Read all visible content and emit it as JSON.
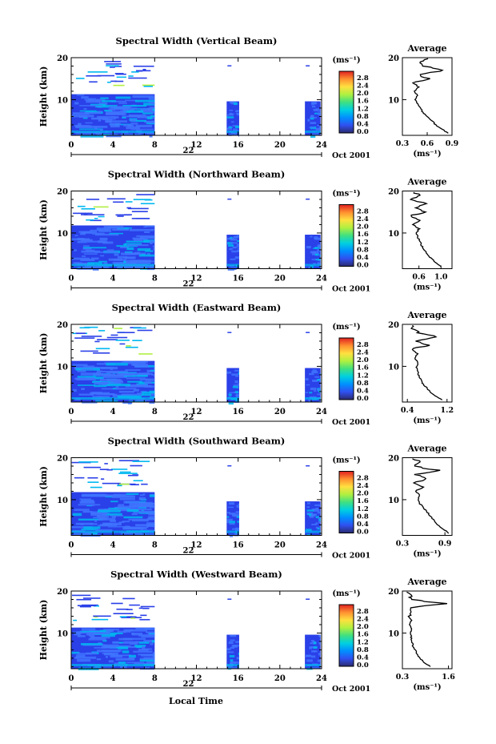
{
  "figure": {
    "colorbar_unit": "(ms⁻¹)",
    "colorbar_ticks": [
      "0.0",
      "0.4",
      "0.8",
      "1.2",
      "1.6",
      "2.0",
      "2.4",
      "2.8"
    ],
    "colorbar_stops": [
      "#2a2a6e",
      "#3050f0",
      "#0090ff",
      "#00d0e0",
      "#40e080",
      "#b0f040",
      "#ffe040",
      "#ff9030",
      "#e02020"
    ],
    "date_label": "Oct 2001",
    "day_label": "22",
    "xlabel_bottom": "Local Time",
    "plot_colors": {
      "field_low": "#2a40e8",
      "field_mid": "#3f74ff",
      "field_cyan": "#00b8f0"
    }
  },
  "chart_data": [
    {
      "type": "heatmap",
      "title": "Spectral Width (Vertical Beam)",
      "ylabel": "Height (km)",
      "xlim": [
        0,
        24
      ],
      "xticks": [
        0,
        4,
        8,
        12,
        16,
        20,
        24
      ],
      "ylim": [
        1.5,
        20
      ],
      "yticks": [
        10,
        20
      ],
      "clim": [
        0,
        3.0
      ],
      "data_blocks_time_h": [
        [
          0,
          8
        ],
        [
          14.9,
          16.1
        ],
        [
          22.4,
          23.9
        ]
      ],
      "avg_profile": {
        "title": "Average",
        "xlabel": "(ms⁻¹)",
        "xlim": [
          0.3,
          0.9
        ],
        "xticks": [
          "0.3",
          "0.6",
          "0.9"
        ],
        "height_km": [
          2,
          3,
          4,
          5,
          6,
          7,
          8,
          9,
          10,
          11,
          12,
          13,
          14,
          15,
          16,
          17,
          18,
          19,
          20
        ],
        "value": [
          0.85,
          0.78,
          0.7,
          0.66,
          0.6,
          0.55,
          0.52,
          0.48,
          0.45,
          0.48,
          0.44,
          0.5,
          0.43,
          0.6,
          0.52,
          0.8,
          0.55,
          0.5,
          0.6
        ]
      }
    },
    {
      "type": "heatmap",
      "title": "Spectral Width (Northward Beam)",
      "ylabel": "Height (km)",
      "xlim": [
        0,
        24
      ],
      "xticks": [
        0,
        4,
        8,
        12,
        16,
        20,
        24
      ],
      "ylim": [
        1.5,
        20
      ],
      "yticks": [
        10,
        20
      ],
      "clim": [
        0,
        3.0
      ],
      "data_blocks_time_h": [
        [
          0,
          8
        ],
        [
          14.9,
          16.1
        ],
        [
          22.4,
          23.9
        ]
      ],
      "avg_profile": {
        "title": "Average",
        "xlabel": "(ms⁻¹)",
        "xlim": [
          0.3,
          1.2
        ],
        "xticks": [
          "0.6",
          "1.0"
        ],
        "height_km": [
          2,
          3,
          4,
          5,
          6,
          7,
          8,
          9,
          10,
          11,
          12,
          13,
          14,
          15,
          16,
          17,
          18,
          19,
          20
        ],
        "value": [
          1.0,
          0.9,
          0.82,
          0.75,
          0.7,
          0.65,
          0.62,
          0.58,
          0.55,
          0.6,
          0.5,
          0.62,
          0.45,
          0.7,
          0.5,
          0.75,
          0.45,
          0.6,
          0.5
        ]
      }
    },
    {
      "type": "heatmap",
      "title": "Spectral Width (Eastward Beam)",
      "ylabel": "Height (km)",
      "xlim": [
        0,
        24
      ],
      "xticks": [
        0,
        4,
        8,
        12,
        16,
        20,
        24
      ],
      "ylim": [
        1.5,
        20
      ],
      "yticks": [
        10,
        20
      ],
      "clim": [
        0,
        3.0
      ],
      "data_blocks_time_h": [
        [
          0,
          8
        ],
        [
          14.9,
          16.1
        ],
        [
          22.4,
          23.9
        ]
      ],
      "avg_profile": {
        "title": "Average",
        "xlabel": "(ms⁻¹)",
        "xlim": [
          0.3,
          1.3
        ],
        "xticks": [
          "0.4",
          "1.2"
        ],
        "height_km": [
          2,
          3,
          4,
          5,
          6,
          7,
          8,
          9,
          10,
          11,
          12,
          13,
          14,
          15,
          16,
          17,
          18,
          19,
          20
        ],
        "value": [
          1.1,
          0.95,
          0.85,
          0.78,
          0.7,
          0.66,
          0.62,
          0.6,
          0.58,
          0.62,
          0.55,
          0.6,
          0.5,
          0.8,
          0.55,
          1.0,
          0.6,
          0.5,
          0.45
        ]
      }
    },
    {
      "type": "heatmap",
      "title": "Spectral Width (Southward Beam)",
      "ylabel": "Height (km)",
      "xlim": [
        0,
        24
      ],
      "xticks": [
        0,
        4,
        8,
        12,
        16,
        20,
        24
      ],
      "ylim": [
        1.5,
        20
      ],
      "yticks": [
        10,
        20
      ],
      "clim": [
        0,
        3.0
      ],
      "data_blocks_time_h": [
        [
          0,
          8
        ],
        [
          14.9,
          16.1
        ],
        [
          22.4,
          23.9
        ]
      ],
      "avg_profile": {
        "title": "Average",
        "xlabel": "(ms⁻¹)",
        "xlim": [
          0.3,
          1.0
        ],
        "xticks": [
          "0.3",
          "0.9"
        ],
        "height_km": [
          2,
          3,
          4,
          5,
          6,
          7,
          8,
          9,
          10,
          11,
          12,
          13,
          14,
          15,
          16,
          17,
          18,
          19,
          20
        ],
        "value": [
          0.95,
          0.88,
          0.8,
          0.75,
          0.7,
          0.65,
          0.6,
          0.55,
          0.52,
          0.55,
          0.48,
          0.6,
          0.45,
          0.65,
          0.5,
          0.8,
          0.45,
          0.55,
          0.4
        ]
      }
    },
    {
      "type": "heatmap",
      "title": "Spectral Width (Westward Beam)",
      "ylabel": "Height (km)",
      "xlim": [
        0,
        24
      ],
      "xticks": [
        0,
        4,
        8,
        12,
        16,
        20,
        24
      ],
      "ylim": [
        1.5,
        20
      ],
      "yticks": [
        10,
        20
      ],
      "clim": [
        0,
        3.0
      ],
      "data_blocks_time_h": [
        [
          0,
          8
        ],
        [
          14.9,
          16.1
        ],
        [
          22.4,
          23.9
        ]
      ],
      "avg_profile": {
        "title": "Average",
        "xlabel": "(ms⁻¹)",
        "xlim": [
          0.3,
          1.7
        ],
        "xticks": [
          "0.3",
          "1.6"
        ],
        "height_km": [
          2,
          3,
          4,
          5,
          6,
          7,
          8,
          9,
          10,
          11,
          12,
          13,
          14,
          15,
          16,
          17,
          18,
          19,
          20
        ],
        "value": [
          1.1,
          0.9,
          0.8,
          0.72,
          0.65,
          0.6,
          0.58,
          0.55,
          0.52,
          0.55,
          0.5,
          0.55,
          0.48,
          0.6,
          0.5,
          1.5,
          0.5,
          0.6,
          0.45
        ]
      }
    }
  ]
}
